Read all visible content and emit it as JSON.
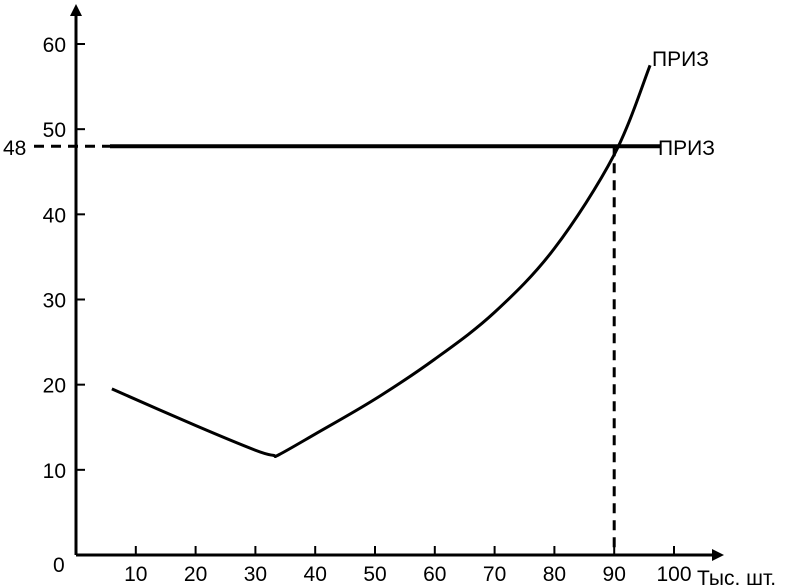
{
  "chart_data": {
    "type": "line",
    "title": "",
    "xlabel": "Тыс. шт.",
    "ylabel": "",
    "xlim": [
      0,
      100
    ],
    "ylim": [
      0,
      60
    ],
    "x_ticks": [
      10,
      20,
      30,
      40,
      50,
      60,
      70,
      80,
      90,
      100
    ],
    "y_ticks": [
      10,
      20,
      30,
      40,
      50,
      60
    ],
    "origin_label": "0",
    "grid": false,
    "series": [
      {
        "name": "ПРИЗ",
        "style": "curve",
        "x": [
          6,
          20,
          30,
          33,
          34,
          40,
          50,
          60,
          70,
          80,
          90,
          96
        ],
        "y": [
          19.5,
          15.2,
          12.3,
          11.7,
          11.8,
          14.2,
          18.3,
          23.0,
          28.5,
          36.0,
          47.0,
          57.5
        ]
      },
      {
        "name": "ПРИЗ",
        "style": "horizontal",
        "x": [
          0,
          96
        ],
        "y": [
          48,
          48
        ]
      }
    ],
    "reference_lines": {
      "y_value": 48,
      "y_label": "48",
      "x_value": 90
    }
  }
}
